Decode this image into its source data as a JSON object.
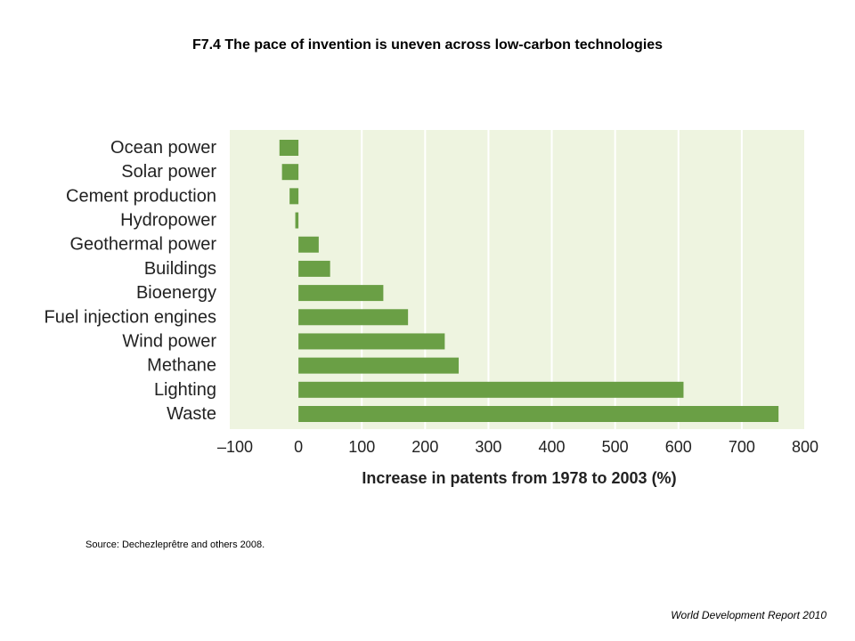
{
  "slide": {
    "title": "F7.4 The pace of invention is uneven across low-carbon technologies",
    "source": "Source: Dechezleprêtre and others 2008.",
    "footer": "World Development Report 2010"
  },
  "chart_data": {
    "type": "bar",
    "orientation": "horizontal",
    "categories": [
      "Ocean power",
      "Solar power",
      "Cement production",
      "Hydropower",
      "Geothermal power",
      "Buildings",
      "Bioenergy",
      "Fuel injection engines",
      "Wind power",
      "Methane",
      "Lighting",
      "Waste"
    ],
    "values": [
      -30,
      -26,
      -14,
      -5,
      32,
      50,
      134,
      173,
      231,
      253,
      608,
      758
    ],
    "xlabel": "Increase in patents from 1978 to 2003 (%)",
    "xlim": [
      -100,
      800
    ],
    "xticks": [
      -100,
      0,
      100,
      200,
      300,
      400,
      500,
      600,
      700,
      800
    ],
    "xtick_labels": [
      "–100",
      "0",
      "100",
      "200",
      "300",
      "400",
      "500",
      "600",
      "700",
      "800"
    ],
    "grid": "vertical",
    "colors": {
      "bar": "#6a9f45",
      "plot_background": "#eef4e0",
      "gridline": "#ffffff"
    }
  }
}
